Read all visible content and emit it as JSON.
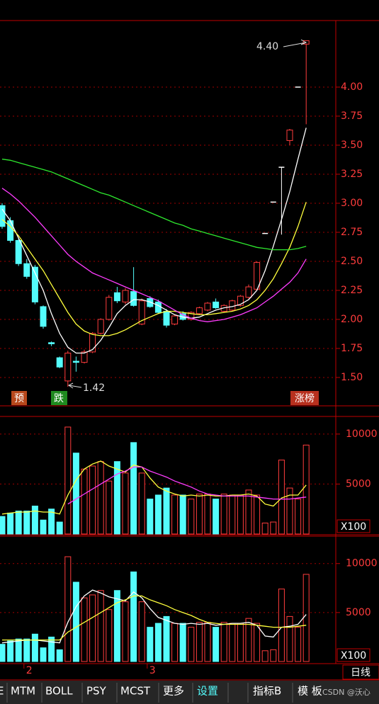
{
  "chart_data": [
    {
      "type": "candlestick",
      "categories": [
        null,
        null,
        null,
        "2",
        null,
        null,
        null,
        null,
        null,
        null,
        null,
        null,
        null,
        null,
        null,
        null,
        null,
        null,
        "3",
        null,
        null,
        null,
        null,
        null,
        null,
        null,
        null,
        null,
        null,
        null,
        null,
        null,
        null,
        null,
        null,
        null,
        null,
        null
      ],
      "open": [
        2.98,
        2.85,
        2.68,
        2.48,
        2.45,
        2.11,
        1.8,
        1.67,
        1.47,
        1.64,
        1.63,
        1.72,
        1.88,
        2.0,
        2.23,
        2.15,
        2.24,
        1.96,
        2.18,
        2.15,
        2.07,
        1.96,
        2.05,
        2.0,
        2.05,
        2.08,
        2.15,
        2.07,
        2.08,
        2.12,
        2.19,
        2.26,
        2.74,
        3.01,
        3.31,
        3.54,
        4.0,
        4.37
      ],
      "high": [
        3.0,
        2.88,
        2.7,
        2.52,
        2.47,
        2.12,
        1.81,
        1.68,
        1.73,
        1.68,
        1.74,
        1.89,
        2.01,
        2.21,
        2.28,
        2.27,
        2.45,
        2.18,
        2.2,
        2.17,
        2.09,
        2.04,
        2.07,
        2.07,
        2.11,
        2.15,
        2.18,
        2.13,
        2.17,
        2.21,
        2.3,
        2.5,
        2.74,
        3.01,
        3.31,
        3.64,
        4.0,
        4.4
      ],
      "low": [
        2.78,
        2.66,
        2.46,
        2.35,
        2.13,
        1.92,
        1.77,
        1.58,
        1.42,
        1.55,
        1.62,
        1.71,
        1.87,
        1.99,
        2.14,
        2.13,
        2.11,
        1.95,
        2.1,
        2.05,
        1.93,
        1.95,
        1.99,
        1.99,
        2.04,
        2.07,
        2.09,
        2.06,
        2.07,
        2.11,
        2.18,
        2.25,
        2.74,
        3.01,
        2.73,
        3.5,
        4.0,
        3.68
      ],
      "close": [
        2.8,
        2.68,
        2.48,
        2.37,
        2.15,
        1.94,
        1.79,
        1.59,
        1.71,
        1.63,
        1.72,
        1.88,
        2.0,
        2.19,
        2.16,
        2.25,
        2.12,
        2.16,
        2.11,
        2.06,
        1.95,
        2.03,
        2.0,
        2.06,
        2.1,
        2.14,
        2.1,
        2.12,
        2.16,
        2.2,
        2.28,
        2.49,
        2.74,
        3.01,
        3.31,
        3.63,
        4.0,
        4.4
      ],
      "up_color": "#ff3c3c",
      "down_color": "#54fcfc",
      "flat_color": "#ffffff",
      "series": [
        {
          "color": "#ffffff",
          "values": [
            2.95,
            2.85,
            2.7,
            2.55,
            2.4,
            2.25,
            2.05,
            1.88,
            1.76,
            1.71,
            1.71,
            1.74,
            1.82,
            1.93,
            2.05,
            2.12,
            2.17,
            2.17,
            2.15,
            2.12,
            2.08,
            2.04,
            2.02,
            2.01,
            2.02,
            2.05,
            2.08,
            2.1,
            2.11,
            2.13,
            2.17,
            2.25,
            2.42,
            2.63,
            2.86,
            3.1,
            3.38,
            3.65
          ]
        },
        {
          "color": "#ffff3c",
          "values": [
            2.86,
            2.8,
            2.72,
            2.62,
            2.52,
            2.42,
            2.3,
            2.18,
            2.06,
            1.96,
            1.9,
            1.87,
            1.86,
            1.86,
            1.88,
            1.91,
            1.95,
            1.99,
            2.02,
            2.05,
            2.07,
            2.07,
            2.06,
            2.05,
            2.04,
            2.04,
            2.05,
            2.06,
            2.07,
            2.09,
            2.12,
            2.17,
            2.25,
            2.35,
            2.48,
            2.62,
            2.8,
            3.01
          ]
        },
        {
          "color": "#ff3cff",
          "values": [
            3.13,
            3.08,
            3.02,
            2.95,
            2.88,
            2.8,
            2.72,
            2.64,
            2.56,
            2.5,
            2.45,
            2.4,
            2.37,
            2.34,
            2.31,
            2.28,
            2.25,
            2.22,
            2.19,
            2.16,
            2.12,
            2.08,
            2.04,
            2.01,
            1.99,
            1.98,
            1.99,
            2.0,
            2.02,
            2.04,
            2.07,
            2.1,
            2.15,
            2.2,
            2.26,
            2.32,
            2.4,
            2.52
          ]
        },
        {
          "color": "#2ee82e",
          "values": [
            3.38,
            3.37,
            3.35,
            3.33,
            3.31,
            3.29,
            3.27,
            3.24,
            3.21,
            3.18,
            3.15,
            3.12,
            3.09,
            3.07,
            3.04,
            3.01,
            2.98,
            2.95,
            2.92,
            2.89,
            2.86,
            2.83,
            2.81,
            2.78,
            2.76,
            2.74,
            2.72,
            2.7,
            2.68,
            2.66,
            2.64,
            2.62,
            2.61,
            2.6,
            2.6,
            2.6,
            2.61,
            2.63
          ]
        }
      ],
      "ylim": [
        1.262,
        4.567
      ],
      "yticks": [
        {
          "value": 1.5,
          "label": "1.50"
        },
        {
          "value": 1.75,
          "label": "1.75"
        },
        {
          "value": 2.0,
          "label": "2.00"
        },
        {
          "value": 2.25,
          "label": "2.25"
        },
        {
          "value": 2.5,
          "label": "2.50"
        },
        {
          "value": 2.75,
          "label": "2.75"
        },
        {
          "value": 3.0,
          "label": "3.00"
        },
        {
          "value": 3.25,
          "label": "3.25"
        },
        {
          "value": 3.5,
          "label": "3.50"
        },
        {
          "value": 3.75,
          "label": "3.75"
        },
        {
          "value": 4.0,
          "label": "4.00"
        }
      ],
      "grid": true,
      "annotations": [
        "4.40",
        "1.42"
      ],
      "markers": [
        "预",
        "跌",
        "涨榜"
      ]
    },
    {
      "type": "volume",
      "values": [
        1760,
        2100,
        2300,
        2300,
        2800,
        1400,
        2500,
        1200,
        10700,
        8100,
        6500,
        6800,
        7250,
        5300,
        7250,
        6100,
        9150,
        6100,
        3500,
        3900,
        4600,
        3900,
        3900,
        3500,
        4000,
        4000,
        3500,
        4000,
        3900,
        3900,
        4400,
        3900,
        1100,
        1200,
        7400,
        4600,
        3500,
        8900
      ],
      "ylim": [
        0,
        11620
      ],
      "yticks": [
        5000,
        10000
      ],
      "grid": true,
      "unit_label": "X100",
      "series": [
        {
          "color": "#ffff3c",
          "values": [
            2000,
            2100,
            2200,
            2200,
            2300,
            2200,
            2200,
            2000,
            3900,
            5400,
            6500,
            7000,
            7300,
            6800,
            6500,
            6200,
            6900,
            6700,
            5600,
            4700,
            4300,
            4000,
            3800,
            3900,
            3800,
            3900,
            3800,
            3800,
            3900,
            3900,
            4000,
            3800,
            3000,
            2800,
            3600,
            3900,
            3900,
            4900
          ]
        },
        {
          "color": "#ff3cff",
          "values": [
            null,
            null,
            null,
            null,
            null,
            null,
            null,
            null,
            3000,
            3500,
            4000,
            4500,
            5000,
            5500,
            6000,
            6300,
            6700,
            6700,
            6300,
            6000,
            5700,
            5300,
            5000,
            4700,
            4300,
            4000,
            3900,
            3800,
            3800,
            3800,
            3800,
            3700,
            3600,
            3500,
            3500,
            3500,
            3600,
            3700
          ]
        }
      ]
    },
    {
      "type": "volume",
      "values": [
        1760,
        2100,
        2300,
        2300,
        2800,
        1400,
        2500,
        1200,
        10700,
        8100,
        6500,
        6800,
        7250,
        5300,
        7250,
        6100,
        9150,
        6100,
        3500,
        3900,
        4600,
        3900,
        3900,
        3500,
        4000,
        4000,
        3500,
        4000,
        3900,
        3900,
        4400,
        3900,
        1100,
        1200,
        7400,
        4600,
        3500,
        8900
      ],
      "ylim": [
        0,
        12800
      ],
      "yticks": [
        5000,
        10000
      ],
      "grid": true,
      "unit_label": "X100",
      "series": [
        {
          "color": "#ffffff",
          "values": [
            1900,
            2000,
            2100,
            2200,
            2200,
            2100,
            2000,
            1900,
            4000,
            5600,
            6700,
            7300,
            7000,
            6600,
            6400,
            6200,
            7100,
            6500,
            5400,
            4500,
            4200,
            3900,
            3800,
            3900,
            3800,
            3900,
            3700,
            3800,
            3900,
            3900,
            4000,
            3700,
            2600,
            2500,
            3500,
            3600,
            3800,
            4800
          ]
        },
        {
          "color": "#ffff3c",
          "values": [
            2200,
            2200,
            2200,
            2200,
            2200,
            2200,
            2200,
            2200,
            3000,
            3500,
            4000,
            4500,
            5000,
            5500,
            6000,
            6300,
            6700,
            6700,
            6300,
            6000,
            5700,
            5300,
            5000,
            4700,
            4300,
            4000,
            3900,
            3800,
            3800,
            3800,
            3800,
            3700,
            3600,
            3500,
            3500,
            3500,
            3600,
            3700
          ]
        }
      ]
    }
  ],
  "period": "日线",
  "tabs": [
    "E",
    "MTM",
    "BOLL",
    "PSY",
    "MCST",
    "更多",
    "设置",
    "指标B",
    "模 板"
  ],
  "watermark": "CSDN @沃心"
}
